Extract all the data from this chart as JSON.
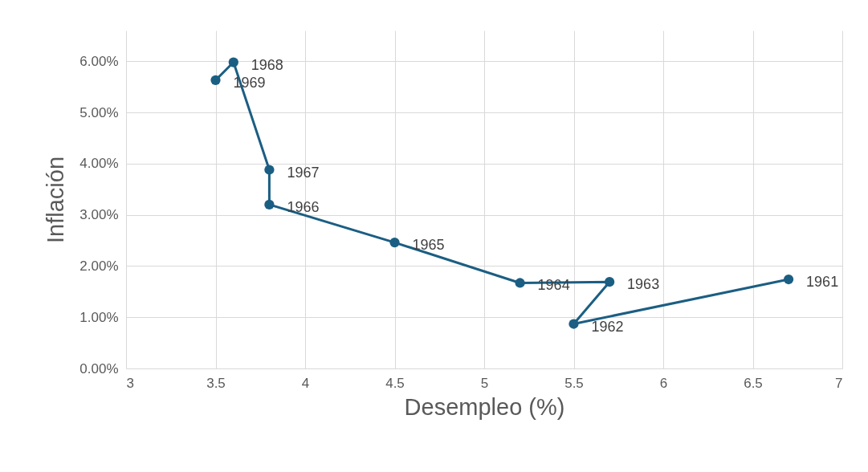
{
  "chart_data": {
    "type": "line",
    "xlabel": "Desempleo (%)",
    "ylabel": "Inflación",
    "x": [
      6.7,
      5.5,
      5.7,
      5.2,
      4.5,
      3.8,
      3.8,
      3.6,
      3.5
    ],
    "series": [
      {
        "color": "#1b5e83",
        "values": [
          1.74,
          0.87,
          1.69,
          1.67,
          2.46,
          3.2,
          3.88,
          5.98,
          5.63
        ]
      }
    ],
    "marker": "circle",
    "grid": true,
    "legend": false,
    "xlim": [
      3,
      7
    ],
    "xticks": [
      3,
      3.5,
      4,
      4.5,
      5,
      5.5,
      6,
      6.5,
      7
    ],
    "ylim": [
      0,
      6.6
    ],
    "yticks": [
      {
        "value": 0,
        "label": "0.00%"
      },
      {
        "value": 1,
        "label": "1.00%"
      },
      {
        "value": 2,
        "label": "2.00%"
      },
      {
        "value": 3,
        "label": "3.00%"
      },
      {
        "value": 4,
        "label": "4.00%"
      },
      {
        "value": 5,
        "label": "5.00%"
      },
      {
        "value": 6,
        "label": "6.00%"
      }
    ],
    "annotations": [
      {
        "text": "1961",
        "x": 6.7,
        "y": 1.74
      },
      {
        "text": "1962",
        "x": 5.5,
        "y": 0.87
      },
      {
        "text": "1963",
        "x": 5.7,
        "y": 1.69
      },
      {
        "text": "1964",
        "x": 5.2,
        "y": 1.67
      },
      {
        "text": "1965",
        "x": 4.5,
        "y": 2.46
      },
      {
        "text": "1966",
        "x": 3.8,
        "y": 3.2
      },
      {
        "text": "1967",
        "x": 3.8,
        "y": 3.88
      },
      {
        "text": "1968",
        "x": 3.6,
        "y": 5.98
      },
      {
        "text": "1969",
        "x": 3.5,
        "y": 5.63
      }
    ]
  }
}
